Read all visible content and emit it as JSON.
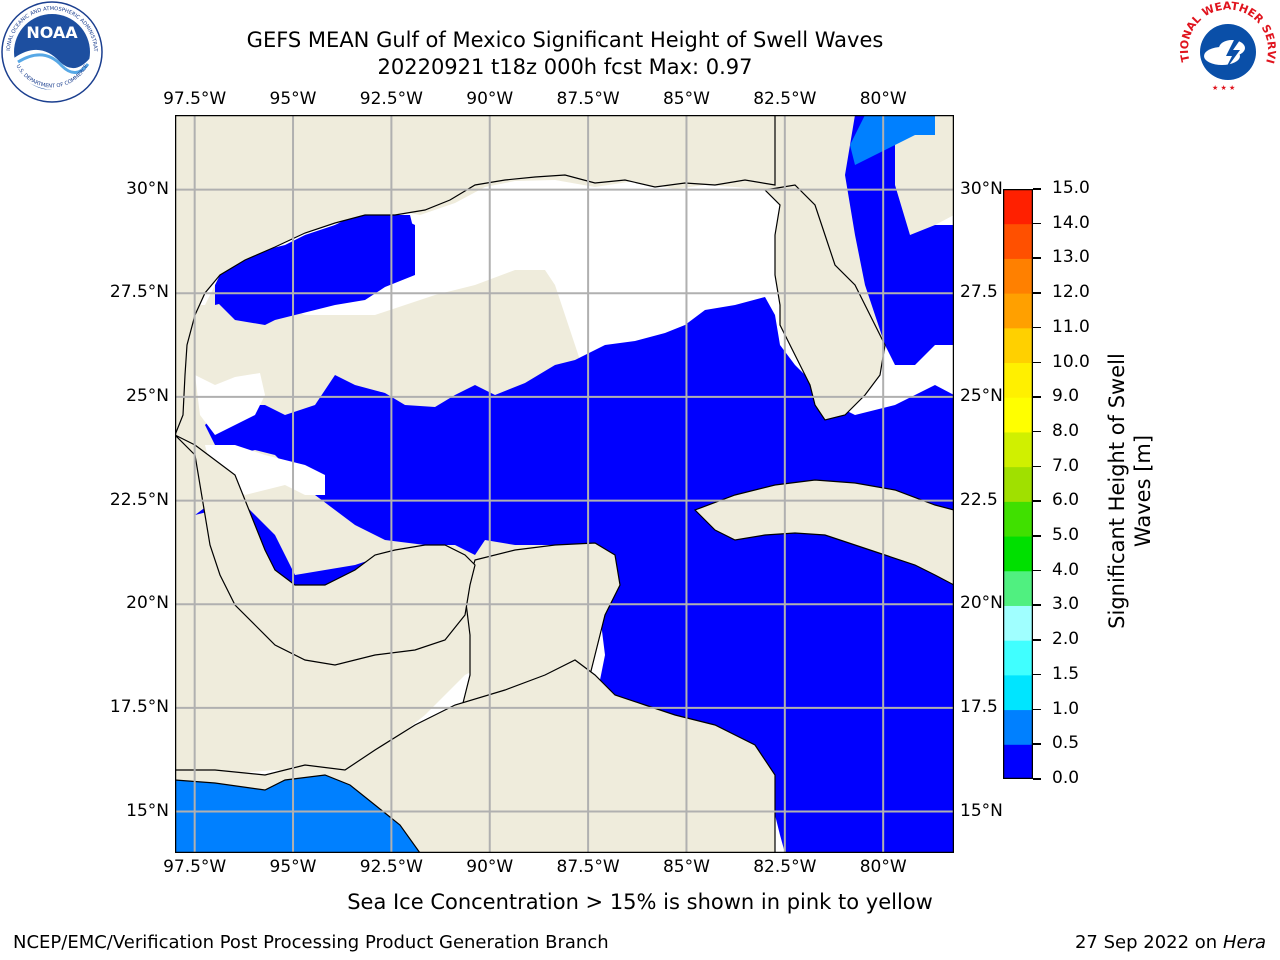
{
  "header": {
    "title_line1": "GEFS MEAN Gulf of Mexico Significant Height of Swell Waves",
    "title_line2": "20220921 t18z 000h fcst   Max: 0.97"
  },
  "logos": {
    "noaa_text": "NOAA",
    "noaa_ring_top": "NATIONAL OCEANIC AND ATMOSPHERIC ADMINISTRATION",
    "noaa_ring_bottom": "U.S. DEPARTMENT OF COMMERCE",
    "nws_ring": "NATIONAL WEATHER SERVICE"
  },
  "map": {
    "lon_labels": [
      "97.5°W",
      "95°W",
      "92.5°W",
      "90°W",
      "87.5°W",
      "85°W",
      "82.5°W",
      "80°W"
    ],
    "lon_values": [
      -97.5,
      -95,
      -92.5,
      -90,
      -87.5,
      -85,
      -82.5,
      -80
    ],
    "lat_labels": [
      "30°N",
      "27.5°N",
      "25°N",
      "22.5°N",
      "20°N",
      "17.5°N",
      "15°N"
    ],
    "lat_values": [
      30,
      27.5,
      25,
      22.5,
      20,
      17.5,
      15
    ],
    "lat_labels_right": [
      "30°N",
      "27.5",
      "25°N",
      "22.5",
      "20°N",
      "17.5",
      "15°N"
    ],
    "lon_range": [
      -98,
      -78.2
    ],
    "lat_range": [
      14,
      31.8
    ],
    "colors": {
      "land": "#efecdc",
      "sea_0_0.5": "#0000ff",
      "sea_0.5_1.0": "#0080ff",
      "no_data": "#ffffff",
      "grid": "#b0b0b0"
    }
  },
  "colorbar": {
    "ticks": [
      "0.0",
      "0.5",
      "1.0",
      "1.5",
      "2.0",
      "3.0",
      "4.0",
      "5.0",
      "6.0",
      "7.0",
      "8.0",
      "9.0",
      "10.0",
      "11.0",
      "12.0",
      "13.0",
      "14.0",
      "15.0"
    ],
    "colors": [
      "#0000ff",
      "#0080ff",
      "#00e5ff",
      "#40ffff",
      "#a0ffff",
      "#50f080",
      "#00e000",
      "#40e000",
      "#a0e000",
      "#d0f000",
      "#ffff00",
      "#fff000",
      "#ffd000",
      "#ffa000",
      "#ff8000",
      "#ff5000",
      "#ff2000"
    ],
    "label_line1": "Significant Height of Swell",
    "label_line2": "Waves [m]"
  },
  "footer": {
    "sea_ice_note": "Sea Ice Concentration > 15% is shown in pink to yellow",
    "producer": "NCEP/EMC/Verification Post Processing Product Generation Branch",
    "date": "27 Sep 2022 on",
    "machine": "Hera"
  }
}
